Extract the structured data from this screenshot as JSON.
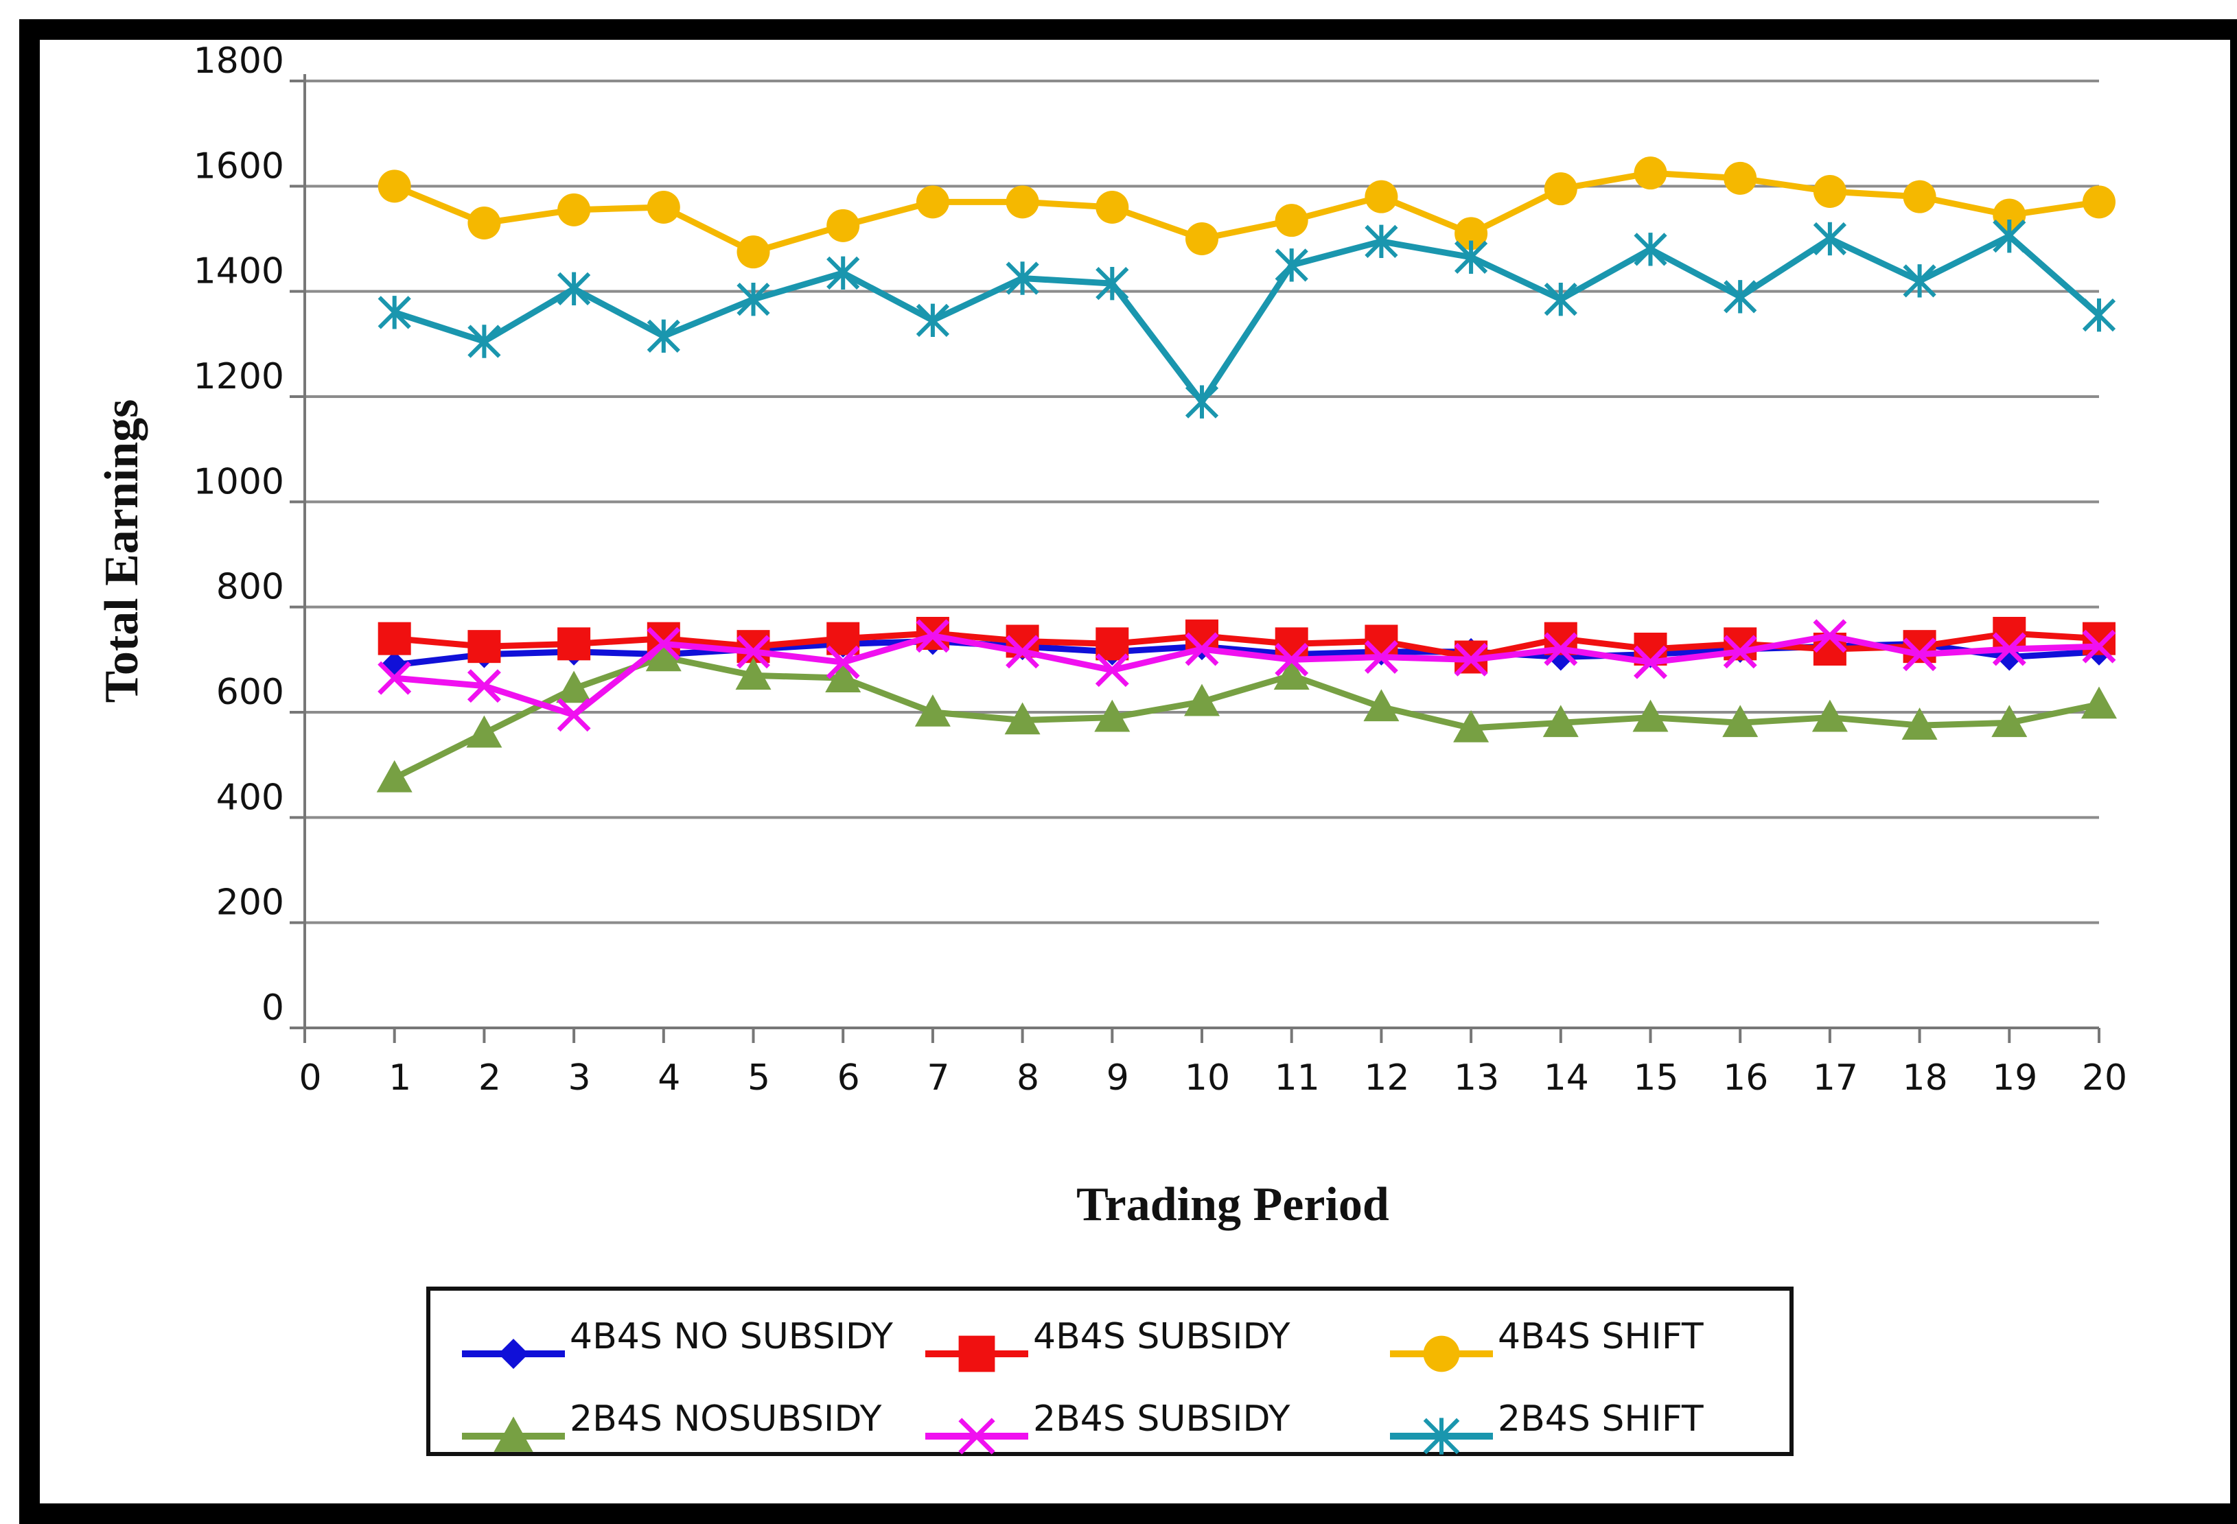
{
  "chart_data": {
    "type": "line",
    "title": "",
    "xlabel": "Trading Period",
    "ylabel": "Total Earnings",
    "xlim": [
      0,
      20
    ],
    "ylim": [
      0,
      1800
    ],
    "x_ticks": [
      "0",
      "1",
      "2",
      "3",
      "4",
      "5",
      "6",
      "7",
      "8",
      "9",
      "10",
      "11",
      "12",
      "13",
      "14",
      "15",
      "16",
      "17",
      "18",
      "19",
      "20"
    ],
    "y_ticks": [
      "0",
      "200",
      "400",
      "600",
      "800",
      "1000",
      "1200",
      "1400",
      "1600",
      "1800"
    ],
    "grid": true,
    "legend_position": "bottom",
    "x": [
      1,
      2,
      3,
      4,
      5,
      6,
      7,
      8,
      9,
      10,
      11,
      12,
      13,
      14,
      15,
      16,
      17,
      18,
      19,
      20
    ],
    "series": [
      {
        "name": "4B4S NO SUBSIDY",
        "color": "#1010d8",
        "marker": "diamond",
        "values": [
          690,
          710,
          715,
          710,
          720,
          730,
          735,
          725,
          715,
          725,
          710,
          715,
          715,
          705,
          710,
          720,
          725,
          730,
          705,
          715
        ]
      },
      {
        "name": "4B4S SUBSIDY",
        "color": "#f01010",
        "marker": "square",
        "values": [
          740,
          725,
          730,
          740,
          725,
          740,
          750,
          735,
          730,
          745,
          730,
          735,
          705,
          740,
          720,
          730,
          720,
          725,
          750,
          740
        ]
      },
      {
        "name": "4B4S SHIFT",
        "color": "#f5b800",
        "marker": "circle",
        "values": [
          1600,
          1530,
          1555,
          1560,
          1475,
          1525,
          1570,
          1570,
          1560,
          1500,
          1535,
          1580,
          1510,
          1595,
          1625,
          1615,
          1590,
          1580,
          1545,
          1570
        ]
      },
      {
        "name": "2B4S NOSUBSIDY",
        "color": "#77a043",
        "marker": "triangle",
        "values": [
          475,
          560,
          645,
          705,
          670,
          665,
          600,
          585,
          590,
          620,
          670,
          610,
          570,
          580,
          590,
          580,
          590,
          575,
          580,
          615
        ]
      },
      {
        "name": "2B4S SUBSIDY",
        "color": "#f010f0",
        "marker": "x",
        "values": [
          665,
          650,
          595,
          730,
          715,
          695,
          745,
          715,
          680,
          720,
          700,
          705,
          700,
          720,
          695,
          715,
          745,
          710,
          720,
          725
        ]
      },
      {
        "name": "2B4S SHIFT",
        "color": "#1a96ae",
        "marker": "asterisk",
        "values": [
          1360,
          1305,
          1405,
          1315,
          1385,
          1435,
          1345,
          1425,
          1415,
          1190,
          1450,
          1495,
          1465,
          1385,
          1480,
          1390,
          1500,
          1420,
          1505,
          1355
        ]
      }
    ]
  }
}
